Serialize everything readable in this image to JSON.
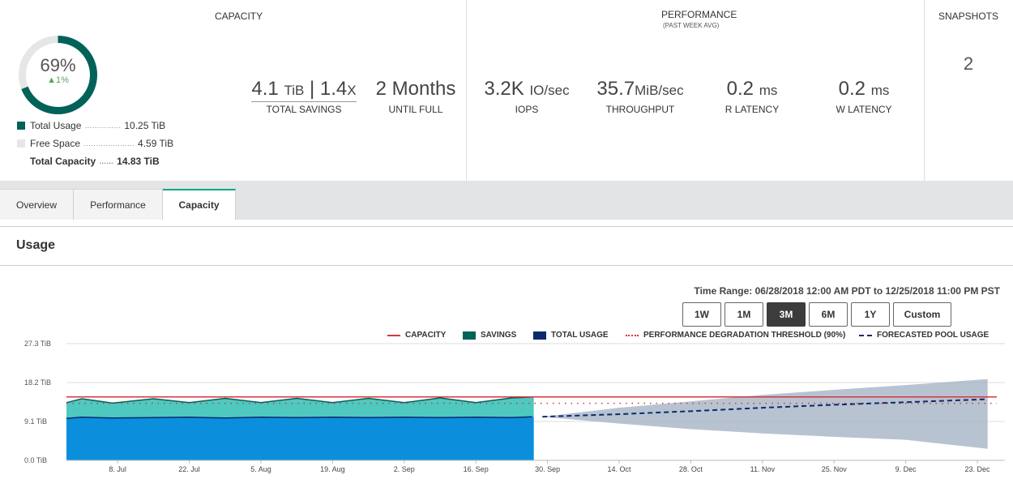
{
  "summary": {
    "capacity": {
      "title": "CAPACITY",
      "percent": "69%",
      "percent_value": 0.69,
      "delta": "1%",
      "legend": [
        {
          "label": "Total Usage",
          "value": "10.25 TiB",
          "color": "#01625a"
        },
        {
          "label": "Free Space",
          "value": "4.59 TiB",
          "color": "#e6e6e6"
        },
        {
          "label": "Total Capacity",
          "value": "14.83 TiB"
        }
      ],
      "savings_value": "4.1",
      "savings_unit": "TiB",
      "savings_ratio": "1.4",
      "savings_ratio_unit": "X",
      "savings_label": "TOTAL SAVINGS",
      "full_value": "2 Months",
      "full_label": "UNTIL FULL"
    },
    "performance": {
      "title": "PERFORMANCE",
      "subtitle": "(PAST WEEK AVG)",
      "metrics": [
        {
          "value": "3.2K",
          "unit": "IO/sec",
          "label": "IOPS"
        },
        {
          "value": "35.7",
          "unit": "MiB/sec",
          "label": "THROUGHPUT"
        },
        {
          "value": "0.2",
          "unit": "ms",
          "label": "R LATENCY"
        },
        {
          "value": "0.2",
          "unit": "ms",
          "label": "W LATENCY"
        }
      ]
    },
    "snapshots": {
      "title": "SNAPSHOTS",
      "count": "2"
    }
  },
  "tabs": [
    {
      "label": "Overview",
      "active": false
    },
    {
      "label": "Performance",
      "active": false
    },
    {
      "label": "Capacity",
      "active": true
    }
  ],
  "usage": {
    "title": "Usage",
    "time_range": "Time Range: 06/28/2018 12:00 AM PDT to 12/25/2018 11:00 PM PST",
    "range_buttons": [
      "1W",
      "1M",
      "3M",
      "6M",
      "1Y",
      "Custom"
    ],
    "active_range": "3M"
  },
  "colors": {
    "capacity": "#d9343d",
    "savings": "#01625a",
    "savings_fill": "#4fc8c0",
    "total_usage": "#0d2a6e",
    "usage_fill": "#0b8fdd",
    "threshold": "#d9343d",
    "forecast": "#0d2a6e",
    "forecast_band": "#aab8c8"
  },
  "chart_data": {
    "type": "area",
    "legend": [
      "CAPACITY",
      "SAVINGS",
      "TOTAL USAGE",
      "PERFORMANCE DEGRADATION THRESHOLD (90%)",
      "FORECASTED POOL USAGE"
    ],
    "y_ticks": [
      "27.3 TiB",
      "18.2 TiB",
      "9.1 TiB",
      "0.0 TiB"
    ],
    "ylim": [
      0,
      27.3
    ],
    "x_ticks": [
      "8. Jul",
      "22. Jul",
      "5. Aug",
      "19. Aug",
      "2. Sep",
      "16. Sep",
      "30. Sep",
      "14. Oct",
      "28. Oct",
      "11. Nov",
      "25. Nov",
      "9. Dec",
      "23. Dec"
    ],
    "capacity_tib": 14.83,
    "threshold_tib": 13.35,
    "usage_series": {
      "name": "TOTAL USAGE",
      "dates": [
        "2018-06-28",
        "2018-07-01",
        "2018-07-07",
        "2018-07-15",
        "2018-07-22",
        "2018-07-29",
        "2018-08-05",
        "2018-08-12",
        "2018-08-19",
        "2018-08-26",
        "2018-09-02",
        "2018-09-09",
        "2018-09-16",
        "2018-09-23",
        "2018-09-27"
      ],
      "values": [
        9.8,
        10.1,
        9.9,
        10.0,
        10.1,
        9.9,
        10.1,
        10.0,
        10.1,
        10.0,
        10.1,
        10.0,
        10.1,
        10.0,
        10.2
      ]
    },
    "savings_series": {
      "name": "SAVINGS",
      "top_values": [
        13.5,
        14.4,
        13.4,
        14.4,
        13.5,
        14.5,
        13.5,
        14.5,
        13.5,
        14.5,
        13.5,
        14.6,
        13.5,
        14.6,
        14.8
      ]
    },
    "forecast": {
      "name": "FORECASTED POOL USAGE",
      "dates": [
        "2018-09-29",
        "2018-10-14",
        "2018-10-28",
        "2018-11-11",
        "2018-11-25",
        "2018-12-09",
        "2018-12-25"
      ],
      "values": [
        10.2,
        10.8,
        11.5,
        12.3,
        13.0,
        13.6,
        14.3
      ],
      "band_low": [
        10.2,
        8.6,
        7.3,
        6.3,
        5.5,
        4.8,
        2.7
      ],
      "band_high": [
        10.2,
        12.3,
        13.8,
        15.3,
        16.5,
        17.6,
        19.0
      ]
    }
  }
}
